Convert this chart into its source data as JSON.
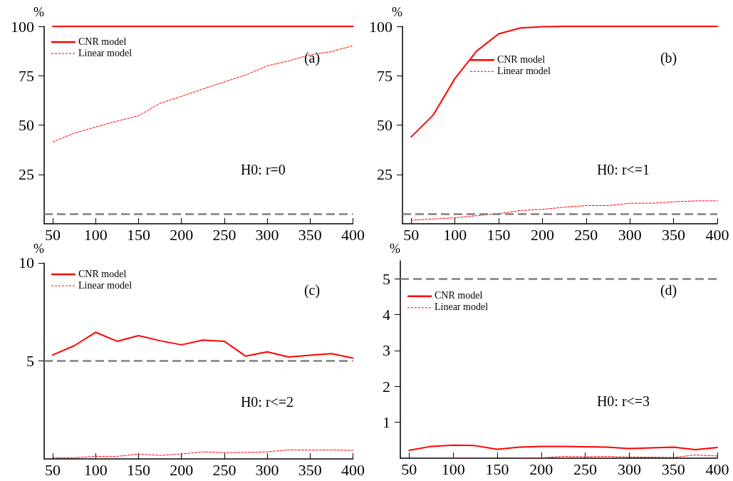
{
  "chart_data": [
    {
      "type": "line",
      "ylabel": "%",
      "annotations": [
        "(a)",
        "H0: r=0"
      ],
      "x": [
        50,
        75,
        100,
        125,
        150,
        175,
        200,
        225,
        250,
        275,
        300,
        325,
        350,
        375,
        400
      ],
      "xlim": [
        40,
        400
      ],
      "xticks": [
        50,
        100,
        150,
        200,
        250,
        300,
        350,
        400
      ],
      "ylim": [
        0,
        100
      ],
      "yticks": [
        25,
        50,
        75,
        100
      ],
      "legend": "top left",
      "grid": false,
      "marker": "none",
      "series": [
        {
          "name": "CNR model",
          "color": "#ff0000",
          "line_style": "solid",
          "values": [
            100,
            100,
            100,
            100,
            100,
            100,
            100,
            100,
            100,
            100,
            100,
            100,
            100,
            100,
            100
          ]
        },
        {
          "name": "Linear model",
          "color": "#ff0000",
          "line_style": "dotted",
          "values": [
            41.4,
            45.9,
            49,
            52,
            54.7,
            61,
            64.5,
            68.3,
            71.8,
            75.4,
            80,
            82.5,
            85.6,
            87.2,
            90.2
          ]
        }
      ],
      "ref_lines": [
        {
          "axis": "y",
          "value": 5,
          "color": "#808080",
          "line_style": "dashed"
        }
      ]
    },
    {
      "type": "line",
      "ylabel": "%",
      "annotations": [
        "(b)",
        "H0: r<=1"
      ],
      "x": [
        50,
        75,
        100,
        125,
        150,
        175,
        200,
        225,
        250,
        275,
        300,
        325,
        350,
        375,
        400
      ],
      "xlim": [
        40,
        400
      ],
      "xticks": [
        50,
        100,
        150,
        200,
        250,
        300,
        350,
        400
      ],
      "ylim": [
        0,
        100
      ],
      "yticks": [
        25,
        50,
        75,
        100
      ],
      "legend": "top",
      "grid": false,
      "marker": "none",
      "series": [
        {
          "name": "CNR model",
          "color": "#ff0000",
          "line_style": "solid",
          "values": [
            44,
            55,
            73.6,
            87.6,
            96.2,
            99.2,
            99.8,
            100,
            100,
            100,
            100,
            100,
            100,
            100,
            100
          ]
        },
        {
          "name": "Linear model",
          "color": "#ff0000",
          "line_style": "dotted",
          "values": [
            1.8,
            2.4,
            3,
            4.1,
            5.1,
            6.7,
            7.3,
            8.4,
            9.2,
            9.2,
            10.4,
            10.4,
            11.1,
            11.6,
            11.6
          ]
        }
      ],
      "ref_lines": [
        {
          "axis": "y",
          "value": 5,
          "color": "#808080",
          "line_style": "dashed"
        }
      ]
    },
    {
      "type": "line",
      "ylabel": "%",
      "annotations": [
        "(c)",
        "H0: r<=2"
      ],
      "x": [
        50,
        75,
        100,
        125,
        150,
        175,
        200,
        225,
        250,
        275,
        300,
        325,
        350,
        375,
        400
      ],
      "xlim": [
        40,
        400
      ],
      "xticks": [
        50,
        100,
        150,
        200,
        250,
        300,
        350,
        400
      ],
      "ylim": [
        0,
        10
      ],
      "yticks": [
        5,
        10
      ],
      "legend": "top left",
      "grid": false,
      "marker": "none",
      "series": [
        {
          "name": "CNR model",
          "color": "#ff0000",
          "line_style": "solid",
          "values": [
            5.3,
            5.77,
            6.46,
            6.0,
            6.29,
            6.03,
            5.82,
            6.06,
            6.0,
            5.24,
            5.46,
            5.2,
            5.29,
            5.37,
            5.14
          ]
        },
        {
          "name": "Linear model",
          "color": "#ff0000",
          "line_style": "dotted",
          "values": [
            0.06,
            0.06,
            0.13,
            0.13,
            0.25,
            0.18,
            0.25,
            0.36,
            0.32,
            0.33,
            0.36,
            0.46,
            0.45,
            0.46,
            0.43
          ]
        }
      ],
      "ref_lines": [
        {
          "axis": "y",
          "value": 5,
          "color": "#808080",
          "line_style": "dashed"
        }
      ]
    },
    {
      "type": "line",
      "ylabel": "%",
      "annotations": [
        "(d)",
        "H0: r<=3"
      ],
      "x": [
        50,
        75,
        100,
        125,
        150,
        175,
        200,
        225,
        250,
        275,
        300,
        325,
        350,
        375,
        400
      ],
      "xlim": [
        40,
        400
      ],
      "xticks": [
        50,
        100,
        150,
        200,
        250,
        300,
        350,
        400
      ],
      "ylim": [
        0,
        5.5
      ],
      "yticks": [
        1,
        2,
        3,
        4,
        5
      ],
      "legend": "top left",
      "grid": false,
      "marker": "none",
      "series": [
        {
          "name": "CNR model",
          "color": "#ff0000",
          "line_style": "solid",
          "values": [
            0.22,
            0.33,
            0.36,
            0.35,
            0.25,
            0.31,
            0.33,
            0.33,
            0.32,
            0.31,
            0.27,
            0.29,
            0.31,
            0.24,
            0.3
          ]
        },
        {
          "name": "Linear model",
          "color": "#ff0000",
          "line_style": "dotted",
          "values": [
            null,
            null,
            0.01,
            0.01,
            null,
            0.01,
            0.01,
            0.05,
            0.04,
            0.05,
            0.03,
            0.03,
            0.02,
            0.09,
            0.06
          ]
        }
      ],
      "ref_lines": [
        {
          "axis": "y",
          "value": 5,
          "color": "#808080",
          "line_style": "dashed"
        }
      ]
    }
  ]
}
